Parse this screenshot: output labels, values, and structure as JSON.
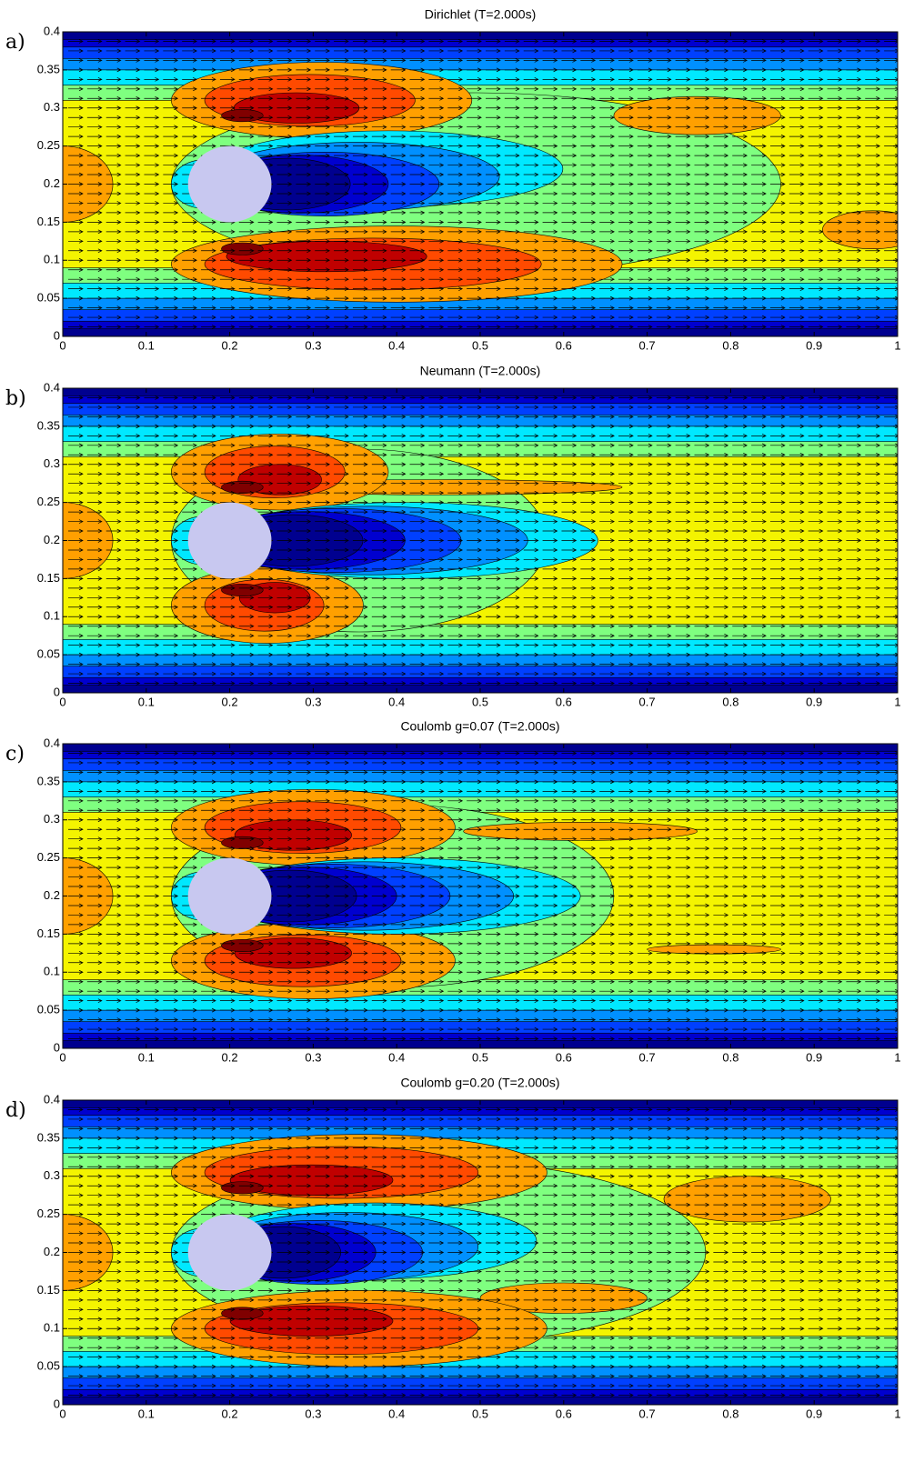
{
  "chart_data": [
    {
      "type": "contour",
      "panel_label": "a)",
      "title": "Dirichlet (T=2.000s)",
      "xlim": [
        0,
        1
      ],
      "ylim": [
        0,
        0.4
      ],
      "xticks": [
        0,
        0.1,
        0.2,
        0.3,
        0.4,
        0.5,
        0.6,
        0.7,
        0.8,
        0.9,
        1
      ],
      "yticks": [
        0,
        0.05,
        0.1,
        0.15,
        0.2,
        0.25,
        0.3,
        0.35,
        0.4
      ]
    },
    {
      "type": "contour",
      "panel_label": "b)",
      "title": "Neumann (T=2.000s)",
      "xlim": [
        0,
        1
      ],
      "ylim": [
        0,
        0.4
      ],
      "xticks": [
        0,
        0.1,
        0.2,
        0.3,
        0.4,
        0.5,
        0.6,
        0.7,
        0.8,
        0.9,
        1
      ],
      "yticks": [
        0,
        0.05,
        0.1,
        0.15,
        0.2,
        0.25,
        0.3,
        0.35,
        0.4
      ]
    },
    {
      "type": "contour",
      "panel_label": "c)",
      "title": "Coulomb g=0.07 (T=2.000s)",
      "xlim": [
        0,
        1
      ],
      "ylim": [
        0,
        0.4
      ],
      "xticks": [
        0,
        0.1,
        0.2,
        0.3,
        0.4,
        0.5,
        0.6,
        0.7,
        0.8,
        0.9,
        1
      ],
      "yticks": [
        0,
        0.05,
        0.1,
        0.15,
        0.2,
        0.25,
        0.3,
        0.35,
        0.4
      ]
    },
    {
      "type": "contour",
      "panel_label": "d)",
      "title": "Coulomb g=0.20 (T=2.000s)",
      "xlim": [
        0,
        1
      ],
      "ylim": [
        0,
        0.4
      ],
      "xticks": [
        0,
        0.1,
        0.2,
        0.3,
        0.4,
        0.5,
        0.6,
        0.7,
        0.8,
        0.9,
        1
      ],
      "yticks": [
        0,
        0.05,
        0.1,
        0.15,
        0.2,
        0.25,
        0.3,
        0.35,
        0.4
      ]
    }
  ]
}
